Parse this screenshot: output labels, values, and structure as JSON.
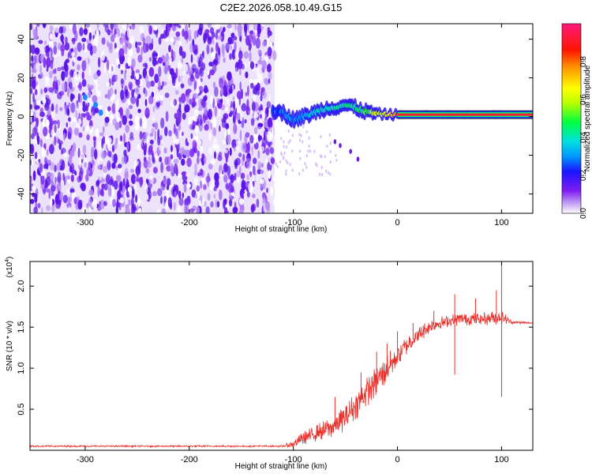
{
  "page_title": "C2E2.2026.058.10.49.G15",
  "chart_data": [
    {
      "type": "heatmap",
      "title": "C2E2.2026.058.10.49.G15",
      "xlabel": "Height of straight line (km)",
      "ylabel": "Frequency (Hz)",
      "xlim": [
        -353,
        130
      ],
      "ylim": [
        -50,
        48
      ],
      "x_ticks": [
        -300,
        -200,
        -100,
        0,
        100
      ],
      "y_ticks": [
        -40,
        -20,
        0,
        20,
        40
      ],
      "grid": false,
      "noise_region": {
        "x_range": [
          -353,
          -118
        ],
        "y_range": [
          -50,
          48
        ],
        "typical_amplitude": 0.15
      },
      "signal_track": [
        {
          "x": -120,
          "y": 3.5,
          "a": 0.25
        },
        {
          "x": -110,
          "y": 2.0,
          "a": 0.28
        },
        {
          "x": -100,
          "y": -1.5,
          "a": 0.3
        },
        {
          "x": -90,
          "y": 0.0,
          "a": 0.32
        },
        {
          "x": -80,
          "y": 2.0,
          "a": 0.35
        },
        {
          "x": -70,
          "y": 4.0,
          "a": 0.38
        },
        {
          "x": -60,
          "y": 5.0,
          "a": 0.4
        },
        {
          "x": -50,
          "y": 6.0,
          "a": 0.42
        },
        {
          "x": -40,
          "y": 4.5,
          "a": 0.45
        },
        {
          "x": -30,
          "y": 2.5,
          "a": 0.5
        },
        {
          "x": -20,
          "y": 1.5,
          "a": 0.6
        },
        {
          "x": -10,
          "y": 1.0,
          "a": 0.65
        },
        {
          "x": 0,
          "y": 1.0,
          "a": 0.8
        },
        {
          "x": 20,
          "y": 1.0,
          "a": 0.85
        },
        {
          "x": 40,
          "y": 1.0,
          "a": 0.88
        },
        {
          "x": 60,
          "y": 1.0,
          "a": 0.9
        },
        {
          "x": 80,
          "y": 1.0,
          "a": 0.9
        },
        {
          "x": 100,
          "y": 1.0,
          "a": 0.92
        },
        {
          "x": 108,
          "y": 1.0,
          "a": 0.92
        }
      ],
      "residual_line": {
        "x_range": [
          0,
          130
        ],
        "y": 1.0,
        "a": 0.92
      },
      "branch": [
        {
          "x": -60,
          "y": -13
        },
        {
          "x": -55,
          "y": -15
        },
        {
          "x": -45,
          "y": -18
        },
        {
          "x": -38,
          "y": -22
        }
      ],
      "colorbar": {
        "label": "Normalized spectral amplitude",
        "range": [
          0,
          1
        ],
        "ticks": [
          0.0,
          0.2,
          0.4,
          0.6,
          0.8
        ],
        "tick_labels": [
          "0.0",
          "0.2",
          "0.4",
          "0.6",
          "0.8"
        ]
      }
    },
    {
      "type": "line",
      "xlabel": "Height of straight line (km)",
      "ylabel": "SNR (10 * v/v)",
      "y_scale_note": "(x10⁴)",
      "y_scale_base": "(x10",
      "y_scale_exp": "4",
      "xlim": [
        -353,
        130
      ],
      "ylim": [
        0,
        2.3
      ],
      "x_ticks": [
        -300,
        -200,
        -100,
        0,
        100
      ],
      "y_ticks": [
        0.5,
        1.0,
        1.5,
        2.0
      ],
      "y_tick_labels": [
        "0.5",
        "1.0",
        "1.5",
        "2.0"
      ],
      "color": "#e8312c",
      "series": [
        {
          "name": "SNR",
          "envelope": [
            {
              "x": -353,
              "y": 0.05,
              "noise": 0.01
            },
            {
              "x": -110,
              "y": 0.05,
              "noise": 0.01
            },
            {
              "x": -100,
              "y": 0.08,
              "noise": 0.05
            },
            {
              "x": -90,
              "y": 0.15,
              "noise": 0.08
            },
            {
              "x": -80,
              "y": 0.2,
              "noise": 0.1
            },
            {
              "x": -70,
              "y": 0.25,
              "noise": 0.12
            },
            {
              "x": -60,
              "y": 0.3,
              "noise": 0.14
            },
            {
              "x": -50,
              "y": 0.4,
              "noise": 0.16
            },
            {
              "x": -40,
              "y": 0.55,
              "noise": 0.18
            },
            {
              "x": -30,
              "y": 0.7,
              "noise": 0.18
            },
            {
              "x": -20,
              "y": 0.85,
              "noise": 0.2
            },
            {
              "x": -10,
              "y": 1.0,
              "noise": 0.18
            },
            {
              "x": 0,
              "y": 1.15,
              "noise": 0.15
            },
            {
              "x": 10,
              "y": 1.3,
              "noise": 0.12
            },
            {
              "x": 20,
              "y": 1.4,
              "noise": 0.1
            },
            {
              "x": 30,
              "y": 1.5,
              "noise": 0.1
            },
            {
              "x": 40,
              "y": 1.55,
              "noise": 0.08
            },
            {
              "x": 60,
              "y": 1.6,
              "noise": 0.08
            },
            {
              "x": 80,
              "y": 1.6,
              "noise": 0.08
            },
            {
              "x": 100,
              "y": 1.62,
              "noise": 0.09
            },
            {
              "x": 110,
              "y": 1.56,
              "noise": 0.02
            },
            {
              "x": 130,
              "y": 1.55,
              "noise": 0.01
            }
          ],
          "spikes": [
            {
              "x": -60,
              "y": 0.65
            },
            {
              "x": -35,
              "y": 0.95
            },
            {
              "x": -20,
              "y": 1.2
            },
            {
              "x": -10,
              "y": 1.3
            },
            {
              "x": 0,
              "y": 1.45
            },
            {
              "x": 15,
              "y": 1.55
            },
            {
              "x": 35,
              "y": 1.7
            },
            {
              "x": 55,
              "y": 1.9
            },
            {
              "x": 55,
              "y": 0.92
            },
            {
              "x": 75,
              "y": 1.85
            },
            {
              "x": 95,
              "y": 1.95
            },
            {
              "x": 100,
              "y": 2.3
            },
            {
              "x": 100,
              "y": 0.65
            }
          ]
        }
      ]
    }
  ]
}
